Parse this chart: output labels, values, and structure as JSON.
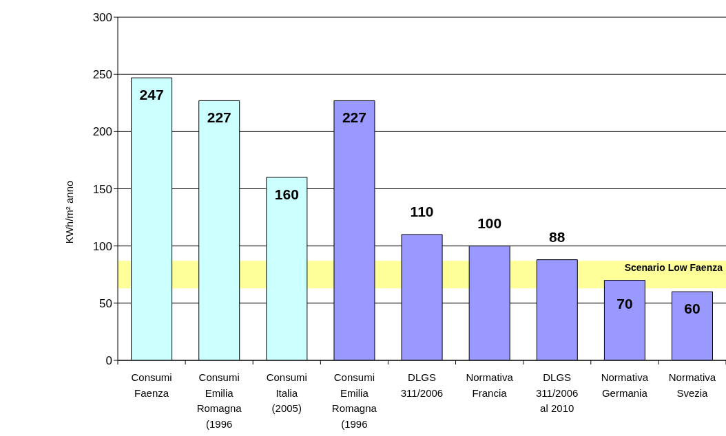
{
  "chart_data": {
    "type": "bar",
    "ylabel": "KWh/m² anno",
    "categories": [
      "Consumi Faenza",
      "Consumi Emilia Romagna (1996",
      "Consumi Italia (2005)",
      "Consumi Emilia Romagna (1996",
      "DLGS 311/2006",
      "Normativa Francia",
      "DLGS 311/2006 al 2010",
      "Normativa Germania",
      "Normativa Svezia"
    ],
    "values": [
      247,
      227,
      160,
      227,
      110,
      100,
      88,
      70,
      60
    ],
    "colors": [
      "#ccffff",
      "#ccffff",
      "#ccffff",
      "#9999ff",
      "#9999ff",
      "#9999ff",
      "#9999ff",
      "#9999ff",
      "#9999ff"
    ],
    "ylim": [
      0,
      300
    ],
    "yticks": [
      0,
      50,
      100,
      150,
      200,
      250,
      300
    ],
    "grid": "y",
    "data_labels": true,
    "bands": [
      {
        "axis": "y",
        "from": 63,
        "to": 87,
        "label": "Scenario Low Faenza",
        "color": "#ffff99"
      }
    ]
  }
}
